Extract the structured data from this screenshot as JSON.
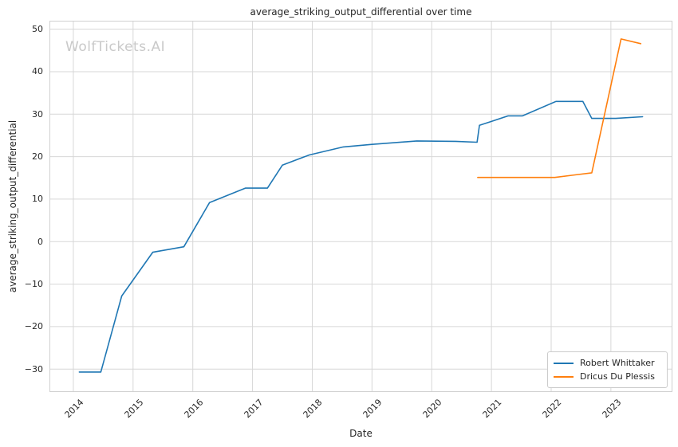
{
  "chart_data": {
    "type": "line",
    "title": "average_striking_output_differential over time",
    "xlabel": "Date",
    "ylabel": "average_striking_output_differential",
    "watermark": "WolfTickets.AI",
    "grid": true,
    "legend_position": "lower right",
    "x_axis": {
      "min": 2013.6,
      "max": 2024.03,
      "ticks": [
        2014,
        2015,
        2016,
        2017,
        2018,
        2019,
        2020,
        2021,
        2022,
        2023
      ]
    },
    "y_axis": {
      "min": -35.4,
      "max": 52.0,
      "ticks": [
        -30,
        -20,
        -10,
        0,
        10,
        20,
        30,
        40,
        50
      ]
    },
    "colors": {
      "grid": "#d7d7d7",
      "border": "#d0d0d0",
      "text": "#262626",
      "watermark": "#c9c9c9",
      "background": "#ffffff"
    },
    "series": [
      {
        "name": "Robert Whittaker",
        "color": "#1f77b4",
        "points": [
          [
            2014.1,
            -30.7
          ],
          [
            2014.46,
            -30.7
          ],
          [
            2014.81,
            -12.8
          ],
          [
            2015.33,
            -2.5
          ],
          [
            2015.85,
            -1.2
          ],
          [
            2016.28,
            9.2
          ],
          [
            2016.88,
            12.6
          ],
          [
            2017.25,
            12.6
          ],
          [
            2017.5,
            18.0
          ],
          [
            2017.95,
            20.4
          ],
          [
            2018.52,
            22.3
          ],
          [
            2019.0,
            22.9
          ],
          [
            2019.75,
            23.7
          ],
          [
            2020.4,
            23.6
          ],
          [
            2020.76,
            23.4
          ],
          [
            2020.8,
            27.4
          ],
          [
            2021.0,
            28.3
          ],
          [
            2021.28,
            29.6
          ],
          [
            2021.52,
            29.6
          ],
          [
            2022.08,
            33.0
          ],
          [
            2022.53,
            33.0
          ],
          [
            2022.68,
            29.0
          ],
          [
            2023.08,
            29.0
          ],
          [
            2023.53,
            29.4
          ]
        ]
      },
      {
        "name": "Dricus Du Plessis",
        "color": "#ff7f0e",
        "points": [
          [
            2020.77,
            15.1
          ],
          [
            2022.06,
            15.1
          ],
          [
            2022.4,
            15.7
          ],
          [
            2022.68,
            16.2
          ],
          [
            2023.17,
            47.7
          ],
          [
            2023.5,
            46.6
          ]
        ]
      }
    ]
  }
}
